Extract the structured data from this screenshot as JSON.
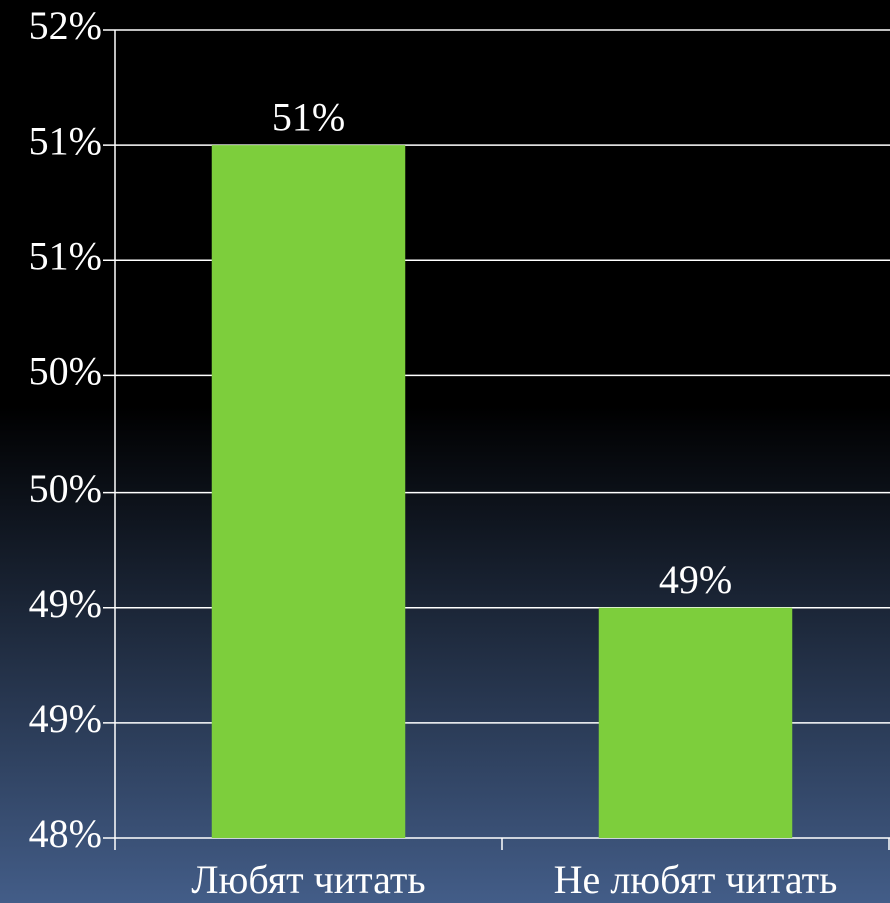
{
  "chart_data": {
    "type": "bar",
    "categories": [
      "Любят читать",
      "Не любят читать"
    ],
    "values": [
      51.43,
      49.14
    ],
    "value_labels": [
      "51%",
      "49%"
    ],
    "color": "#7dce3c",
    "ylim": [
      48,
      52
    ],
    "yticks": [
      {
        "value": 48,
        "label": "48%"
      },
      {
        "value": 48.57,
        "label": "49%"
      },
      {
        "value": 49.14,
        "label": "49%"
      },
      {
        "value": 49.71,
        "label": "50%"
      },
      {
        "value": 50.29,
        "label": "50%"
      },
      {
        "value": 50.86,
        "label": "51%"
      },
      {
        "value": 51.43,
        "label": "51%"
      },
      {
        "value": 52,
        "label": "52%"
      }
    ],
    "grid": true
  }
}
